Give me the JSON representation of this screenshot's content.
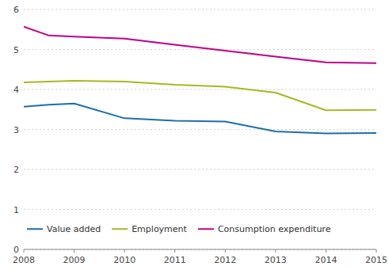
{
  "chart_data": {
    "type": "line",
    "x": [
      2008,
      2008.5,
      2009,
      2010,
      2011,
      2012,
      2013,
      2014,
      2015
    ],
    "series": [
      {
        "name": "Value added",
        "color": "#1c6fad",
        "values": [
          3.57,
          3.62,
          3.65,
          3.28,
          3.22,
          3.2,
          2.95,
          2.9,
          2.91
        ]
      },
      {
        "name": "Employment",
        "color": "#a8b820",
        "values": [
          4.18,
          4.2,
          4.22,
          4.2,
          4.12,
          4.07,
          3.92,
          3.48,
          3.49
        ]
      },
      {
        "name": "Consumption expenditure",
        "color": "#c0008a",
        "values": [
          5.57,
          5.35,
          5.32,
          5.27,
          5.12,
          4.97,
          4.82,
          4.68,
          4.66
        ]
      }
    ],
    "xlim": [
      2008,
      2015
    ],
    "xticks": [
      2008,
      2009,
      2010,
      2011,
      2012,
      2013,
      2014,
      2015
    ],
    "ylim": [
      0,
      6
    ],
    "yticks": [
      0,
      1,
      2,
      3,
      4,
      5,
      6
    ],
    "grid": true,
    "legend": "lower left"
  }
}
